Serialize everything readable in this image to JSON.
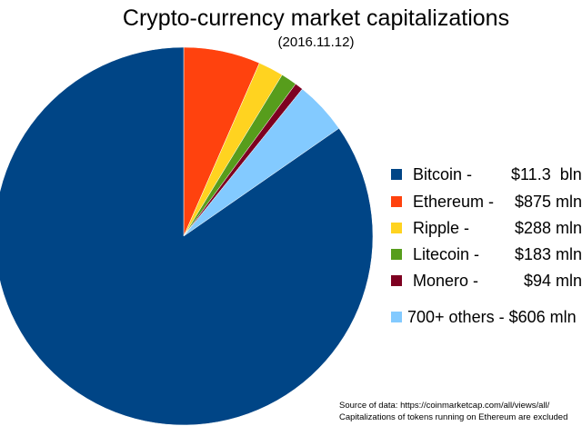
{
  "chart_data": {
    "type": "pie",
    "title": "Crypto-currency market capitalizations",
    "subtitle": "(2016.11.12)",
    "unit": "million USD",
    "slices": [
      {
        "name": "Ethereum",
        "label": "Ethereum -",
        "value_label": "$875 mln",
        "value": 875,
        "color": "#ff420e"
      },
      {
        "name": "Ripple",
        "label": "Ripple -",
        "value_label": "$288 mln",
        "value": 288,
        "color": "#ffd320"
      },
      {
        "name": "Litecoin",
        "label": "Litecoin -",
        "value_label": "$183 mln",
        "value": 183,
        "color": "#579d1c"
      },
      {
        "name": "Monero",
        "label": "Monero -",
        "value_label": "$94 mln",
        "value": 94,
        "color": "#7e0021"
      },
      {
        "name": "700+ others",
        "label": "700+ others -",
        "value_label": "$606 mln",
        "value": 606,
        "color": "#83caff"
      },
      {
        "name": "Bitcoin",
        "label": "Bitcoin -",
        "value_label": "$11.3  bln",
        "value": 11300,
        "color": "#004586"
      }
    ],
    "legend_order": [
      "Bitcoin",
      "Ethereum",
      "Ripple",
      "Litecoin",
      "Monero",
      "700+ others"
    ],
    "legend_position": "right",
    "notes": [
      "Source of data: https://coinmarketcap.com/all/views/all/",
      "Capitalizations of tokens running on Ethereum are excluded"
    ]
  }
}
